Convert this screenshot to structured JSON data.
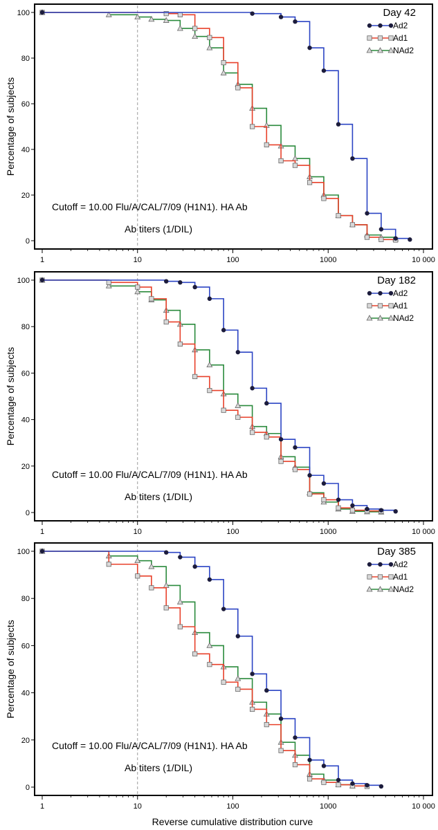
{
  "figure": {
    "xlabel": "Reverse cumulative distribution curve"
  },
  "chart_data": [
    {
      "type": "line",
      "step": true,
      "title": "Day 42",
      "xscale": "log",
      "xlim": [
        1,
        10000
      ],
      "ylim": [
        0,
        100
      ],
      "ylabel": "Percentage of subjects",
      "xticks": [
        1,
        10,
        100,
        1000,
        10000
      ],
      "xtick_labels": [
        "1",
        "10",
        "100",
        "1000",
        "10 000"
      ],
      "yticks": [
        0,
        20,
        40,
        60,
        80,
        100
      ],
      "ytick_labels": [
        "0",
        "20",
        "40",
        "60",
        "80",
        "100"
      ],
      "cutoff": 10,
      "annotation_line1": "Cutoff = 10.00 Flu/A/CAL/7/09 (H1N1). HA Ab",
      "annotation_line2": "Ab titers (1/DIL)",
      "legend_position": "top-right",
      "series": [
        {
          "name": "Ad2",
          "color": "#2b44c4",
          "marker": "circle",
          "x": [
            1,
            160,
            320,
            450,
            640,
            900,
            1280,
            1800,
            2560,
            3600,
            5100,
            7200
          ],
          "y": [
            100,
            99.5,
            98,
            96,
            84.5,
            74.5,
            51,
            36,
            12,
            5,
            1,
            0.5
          ]
        },
        {
          "name": "Ad1",
          "color": "#e8402a",
          "marker": "square",
          "x": [
            1,
            20,
            28,
            40,
            57,
            80,
            113,
            160,
            226,
            320,
            450,
            640,
            900,
            1280,
            1800,
            2560,
            3600,
            5100
          ],
          "y": [
            100,
            99.5,
            99,
            93,
            89,
            78,
            67,
            50,
            42,
            35,
            33,
            25.5,
            18.5,
            11,
            7,
            1.5,
            0.5,
            0.3
          ]
        },
        {
          "name": "NAd2",
          "color": "#2a8a3c",
          "marker": "triangle",
          "x": [
            1,
            5,
            10,
            14,
            20,
            28,
            40,
            57,
            80,
            113,
            160,
            226,
            320,
            450,
            640,
            900,
            1280,
            1800,
            2560,
            3600,
            5100
          ],
          "y": [
            100,
            99,
            98,
            97,
            96.5,
            93,
            89.5,
            84.5,
            73.5,
            68.5,
            58,
            50.5,
            41.5,
            36,
            28,
            20,
            11,
            7,
            2.5,
            1.5,
            0.8
          ]
        }
      ]
    },
    {
      "type": "line",
      "step": true,
      "title": "Day 182",
      "xscale": "log",
      "xlim": [
        1,
        10000
      ],
      "ylim": [
        0,
        100
      ],
      "ylabel": "Percentage of subjects",
      "xticks": [
        1,
        10,
        100,
        1000,
        10000
      ],
      "xtick_labels": [
        "1",
        "10",
        "100",
        "1000",
        "10 000"
      ],
      "yticks": [
        0,
        20,
        40,
        60,
        80,
        100
      ],
      "ytick_labels": [
        "0",
        "20",
        "40",
        "60",
        "80",
        "100"
      ],
      "cutoff": 10,
      "annotation_line1": "Cutoff = 10.00 Flu/A/CAL/7/09 (H1N1). HA Ab",
      "annotation_line2": "Ab titers (1/DIL)",
      "legend_position": "top-right",
      "series": [
        {
          "name": "Ad2",
          "color": "#2b44c4",
          "marker": "circle",
          "x": [
            1,
            20,
            28,
            40,
            57,
            80,
            113,
            160,
            226,
            320,
            450,
            640,
            900,
            1280,
            1800,
            2560,
            3600,
            5100
          ],
          "y": [
            100,
            99.5,
            99,
            97,
            92,
            78.5,
            69,
            53.5,
            47,
            31.5,
            28,
            16,
            12.5,
            5.5,
            3,
            1.5,
            1,
            0.5
          ]
        },
        {
          "name": "Ad1",
          "color": "#e8402a",
          "marker": "square",
          "x": [
            1,
            5,
            10,
            14,
            20,
            28,
            40,
            57,
            80,
            113,
            160,
            226,
            320,
            450,
            640,
            900,
            1280,
            1800,
            2560,
            3600
          ],
          "y": [
            100,
            99,
            97,
            92,
            82,
            72.5,
            58.5,
            52.5,
            44,
            41,
            34.5,
            32.5,
            22,
            18.5,
            8,
            5.5,
            2,
            1,
            0.7,
            0.5
          ]
        },
        {
          "name": "NAd2",
          "color": "#2a8a3c",
          "marker": "triangle",
          "x": [
            1,
            5,
            10,
            14,
            20,
            28,
            40,
            57,
            80,
            113,
            160,
            226,
            320,
            450,
            640,
            900,
            1280,
            1800,
            2560,
            3600
          ],
          "y": [
            100,
            97.5,
            95,
            91.5,
            87,
            81,
            70,
            63.5,
            51,
            46,
            37,
            34,
            24,
            19.5,
            8.5,
            4.5,
            1.5,
            0.5,
            0.3,
            0.2
          ]
        }
      ]
    },
    {
      "type": "line",
      "step": true,
      "title": "Day 385",
      "xscale": "log",
      "xlim": [
        1,
        10000
      ],
      "ylim": [
        0,
        100
      ],
      "ylabel": "Percentage of subjects",
      "xticks": [
        1,
        10,
        100,
        1000,
        10000
      ],
      "xtick_labels": [
        "1",
        "10",
        "100",
        "1000",
        "10 000"
      ],
      "yticks": [
        0,
        20,
        40,
        60,
        80,
        100
      ],
      "ytick_labels": [
        "0",
        "20",
        "40",
        "60",
        "80",
        "100"
      ],
      "cutoff": 10,
      "annotation_line1": "Cutoff = 10.00 Flu/A/CAL/7/09 (H1N1). HA Ab",
      "annotation_line2": "Ab titers (1/DIL)",
      "legend_position": "top-right",
      "series": [
        {
          "name": "Ad2",
          "color": "#2b44c4",
          "marker": "circle",
          "x": [
            1,
            20,
            28,
            40,
            57,
            80,
            113,
            160,
            226,
            320,
            450,
            640,
            900,
            1280,
            1800,
            2560,
            3600
          ],
          "y": [
            100,
            99.5,
            97.5,
            93.5,
            88,
            75.5,
            64,
            48,
            41,
            29,
            21,
            11.5,
            9,
            3,
            1.5,
            0.8,
            0.3
          ]
        },
        {
          "name": "Ad1",
          "color": "#e8402a",
          "marker": "square",
          "x": [
            1,
            5,
            10,
            14,
            20,
            28,
            40,
            57,
            80,
            113,
            160,
            226,
            320,
            450,
            640,
            900,
            1280,
            1800,
            2560
          ],
          "y": [
            100,
            94.5,
            89.5,
            84.5,
            76,
            68,
            56.5,
            52,
            44.5,
            41.5,
            33,
            26.5,
            15.5,
            9.5,
            3.5,
            2,
            1,
            0.5,
            0.3
          ]
        },
        {
          "name": "NAd2",
          "color": "#2a8a3c",
          "marker": "triangle",
          "x": [
            1,
            5,
            10,
            14,
            20,
            28,
            40,
            57,
            80,
            113,
            160,
            226,
            320,
            450,
            640,
            900,
            1280,
            1800
          ],
          "y": [
            100,
            98,
            96,
            93.5,
            85.5,
            78.5,
            65.5,
            60,
            51,
            46,
            36,
            31,
            19,
            13.5,
            5.5,
            3,
            1,
            0.5
          ]
        }
      ]
    }
  ]
}
